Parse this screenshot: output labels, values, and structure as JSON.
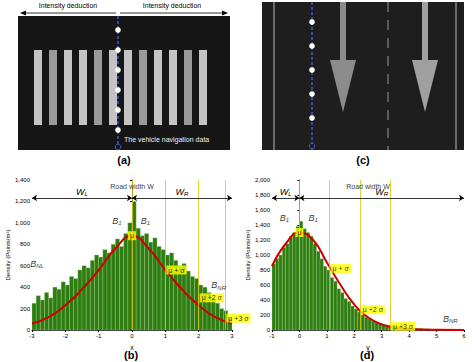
{
  "images": [
    {
      "label": "(a)",
      "annotations": [
        "Intensity deduction",
        "Intensity deduction",
        "The vehicle navigation data"
      ]
    },
    {
      "label": "(c)"
    }
  ],
  "chart_data": [
    {
      "type": "histogram",
      "title": "(b)",
      "xlabel": "x",
      "ylabel": "Density (Points/m²)",
      "color": "#2f7d12",
      "bins": [
        -3,
        -2.875,
        -2.75,
        -2.625,
        -2.5,
        -2.375,
        -2.25,
        -2.125,
        -2,
        -1.875,
        -1.75,
        -1.625,
        -1.5,
        -1.375,
        -1.25,
        -1.125,
        -1,
        -0.875,
        -0.75,
        -0.625,
        -0.5,
        -0.375,
        -0.25,
        -0.125,
        0,
        0.125,
        0.25,
        0.375,
        0.5,
        0.625,
        0.75,
        0.875,
        1,
        1.125,
        1.25,
        1.375,
        1.5,
        1.625,
        1.75,
        1.875,
        2,
        2.125,
        2.25,
        2.375,
        2.5,
        2.625,
        2.75,
        2.875,
        3
      ],
      "counts": [
        250,
        320,
        280,
        350,
        300,
        400,
        380,
        450,
        420,
        500,
        480,
        560,
        600,
        580,
        650,
        700,
        680,
        750,
        720,
        800,
        850,
        780,
        900,
        1000,
        1200,
        950,
        880,
        900,
        820,
        860,
        780,
        750,
        700,
        720,
        650,
        600,
        620,
        550,
        500,
        480,
        420,
        400,
        350,
        300,
        250,
        200,
        180,
        120
      ],
      "xlim": [
        -3,
        3
      ],
      "xticks": [
        -3,
        -2,
        -1,
        0,
        1,
        2,
        3
      ],
      "ylim": [
        0,
        1400
      ],
      "yticks": [
        0,
        200,
        400,
        600,
        800,
        1000,
        1200,
        1400
      ],
      "curve": {
        "color": "#d00000",
        "x": [
          -3,
          -2.5,
          -2,
          -1.5,
          -1,
          -0.5,
          0,
          0.5,
          1,
          1.5,
          2,
          2.5,
          3
        ],
        "y": [
          60,
          120,
          230,
          380,
          560,
          760,
          880,
          760,
          560,
          380,
          230,
          120,
          60
        ]
      },
      "markers": [
        {
          "label": "μ",
          "x": 0,
          "y": 880
        },
        {
          "label": "μ + σ",
          "x": 1,
          "y": 560
        },
        {
          "label": "μ +2 σ",
          "x": 2,
          "y": 300
        },
        {
          "label": "μ +3 σ",
          "x": 2.8,
          "y": 110
        }
      ],
      "road_width": {
        "text": "Road width W",
        "left": {
          "text": "W",
          "sub": "L"
        },
        "right": {
          "text": "W",
          "sub": "R"
        }
      },
      "annotations": [
        {
          "text": "B",
          "sub": "1",
          "x": -0.45,
          "y": 1020
        },
        {
          "text": "B",
          "sub": "1",
          "x": 0.4,
          "y": 1020
        },
        {
          "text": "B",
          "sub": "NL",
          "x": -2.85,
          "y": 620
        },
        {
          "text": "B",
          "sub": "NR",
          "x": 2.6,
          "y": 420
        }
      ]
    },
    {
      "type": "histogram",
      "title": "(d)",
      "xlabel": "y",
      "ylabel": "Density (Points/m²)",
      "color": "#2f7d12",
      "bins": [
        -1,
        -0.875,
        -0.75,
        -0.625,
        -0.5,
        -0.375,
        -0.25,
        -0.125,
        0,
        0.125,
        0.25,
        0.375,
        0.5,
        0.625,
        0.75,
        0.875,
        1,
        1.125,
        1.25,
        1.375,
        1.5,
        1.625,
        1.75,
        1.875,
        2,
        2.125,
        2.25,
        2.375,
        2.5,
        2.625,
        2.75,
        2.875,
        3,
        3.125,
        3.25,
        3.375,
        3.5,
        3.625,
        3.75,
        3.875,
        4,
        4.125,
        4.25,
        4.375,
        4.5,
        4.625,
        4.75,
        4.875,
        5,
        5.125,
        5.25,
        5.375,
        5.5,
        5.625,
        5.75,
        5.875,
        6
      ],
      "counts": [
        880,
        950,
        1000,
        1100,
        1150,
        1250,
        1300,
        1380,
        1450,
        1350,
        1300,
        1250,
        1150,
        1050,
        950,
        850,
        800,
        700,
        650,
        550,
        500,
        420,
        380,
        320,
        280,
        240,
        200,
        170,
        150,
        120,
        100,
        90,
        80,
        70,
        60,
        50,
        45,
        40,
        35,
        30,
        30,
        25,
        20,
        20,
        15,
        15,
        10,
        10,
        10,
        8,
        5,
        5,
        5,
        3,
        2,
        2
      ],
      "xlim": [
        -1,
        6
      ],
      "xticks": [
        -1,
        0,
        1,
        2,
        3,
        4,
        5,
        6
      ],
      "ylim": [
        0,
        2000
      ],
      "yticks": [
        0,
        200,
        400,
        600,
        800,
        1000,
        1200,
        1400,
        1600,
        1800,
        2000
      ],
      "curve": {
        "color": "#d00000",
        "x": [
          -1,
          -0.5,
          0,
          0.5,
          1,
          1.5,
          2,
          2.5,
          3,
          3.5,
          4,
          5,
          6
        ],
        "y": [
          850,
          1150,
          1300,
          1200,
          900,
          600,
          340,
          170,
          75,
          30,
          12,
          2,
          0
        ]
      },
      "markers": [
        {
          "label": "μ",
          "x": 0,
          "y": 1300
        },
        {
          "label": "μ + σ",
          "x": 1.1,
          "y": 820
        },
        {
          "label": "μ +2 σ",
          "x": 2.2,
          "y": 270
        },
        {
          "label": "μ +3 σ",
          "x": 3.3,
          "y": 50
        }
      ],
      "road_width": {
        "text": "Road width W",
        "left": {
          "text": "W",
          "sub": "L"
        },
        "right": {
          "text": "W",
          "sub": "R"
        }
      },
      "annotations": [
        {
          "text": "B",
          "sub": "1",
          "x": -0.55,
          "y": 1500
        },
        {
          "text": "B",
          "sub": "1",
          "x": 0.5,
          "y": 1500
        },
        {
          "text": "B",
          "sub": "NR",
          "x": 5.5,
          "y": 150
        }
      ]
    }
  ]
}
